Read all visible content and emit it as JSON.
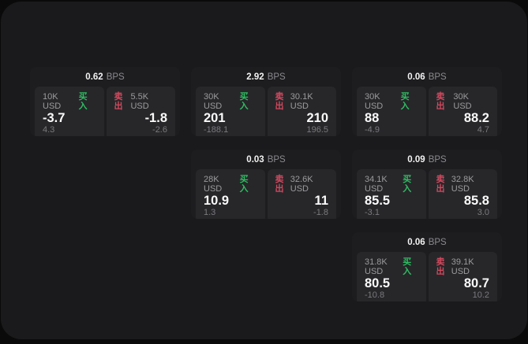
{
  "labels": {
    "bps_unit": "BPS",
    "buy": "买入",
    "sell": "卖出"
  },
  "colors": {
    "buy_green": "#2ebd62",
    "sell_red": "#d1495e",
    "page_bg": "#1a1a1c",
    "card_bg": "#1d1d20",
    "panel_bg": "#27272a"
  },
  "cards": [
    {
      "bps": "0.62",
      "buy": {
        "notional": "10K USD",
        "price": "-3.7",
        "change": "4.3"
      },
      "sell": {
        "notional": "5.5K USD",
        "price": "-1.8",
        "change": "-2.6"
      }
    },
    {
      "bps": "2.92",
      "buy": {
        "notional": "30K USD",
        "price": "201",
        "change": "-188.1"
      },
      "sell": {
        "notional": "30.1K USD",
        "price": "210",
        "change": "196.5"
      }
    },
    {
      "bps": "0.06",
      "buy": {
        "notional": "30K USD",
        "price": "88",
        "change": "-4.9"
      },
      "sell": {
        "notional": "30K USD",
        "price": "88.2",
        "change": "4.7"
      }
    },
    {
      "bps": "0.03",
      "buy": {
        "notional": "28K USD",
        "price": "10.9",
        "change": "1.3"
      },
      "sell": {
        "notional": "32.6K USD",
        "price": "11",
        "change": "-1.8"
      }
    },
    {
      "bps": "0.09",
      "buy": {
        "notional": "34.1K USD",
        "price": "85.5",
        "change": "-3.1"
      },
      "sell": {
        "notional": "32.8K USD",
        "price": "85.8",
        "change": "3.0"
      }
    },
    {
      "bps": "0.06",
      "buy": {
        "notional": "31.8K USD",
        "price": "80.5",
        "change": "-10.8"
      },
      "sell": {
        "notional": "39.1K USD",
        "price": "80.7",
        "change": "10.2"
      }
    }
  ]
}
